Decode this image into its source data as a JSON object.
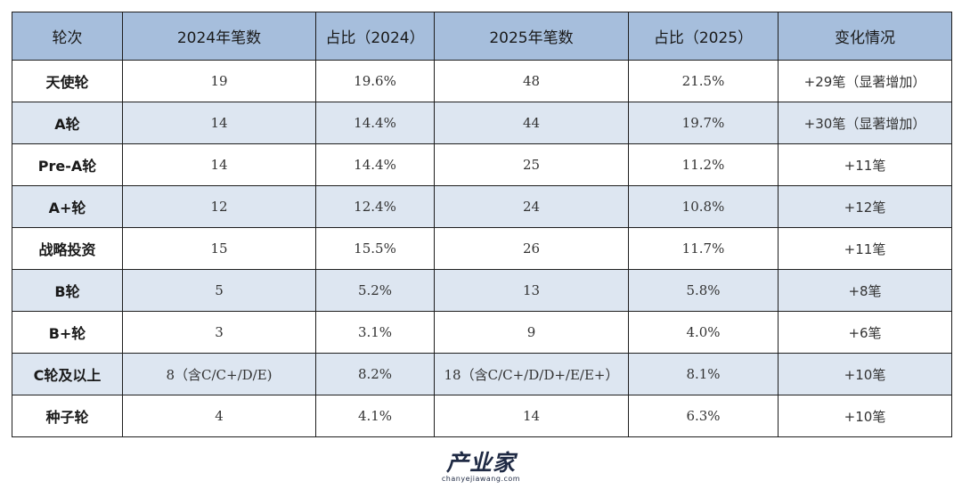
{
  "table": {
    "headers": [
      "轮次",
      "2024年笔数",
      "占比（2024）",
      "2025年笔数",
      "占比（2025）",
      "变化情况"
    ],
    "rows": [
      [
        "天使轮",
        "19",
        "19.6%",
        "48",
        "21.5%",
        "+29笔（显著增加）"
      ],
      [
        "A轮",
        "14",
        "14.4%",
        "44",
        "19.7%",
        "+30笔（显著增加）"
      ],
      [
        "Pre-A轮",
        "14",
        "14.4%",
        "25",
        "11.2%",
        "+11笔"
      ],
      [
        "A+轮",
        "12",
        "12.4%",
        "24",
        "10.8%",
        "+12笔"
      ],
      [
        "战略投资",
        "15",
        "15.5%",
        "26",
        "11.7%",
        "+11笔"
      ],
      [
        "B轮",
        "5",
        "5.2%",
        "13",
        "5.8%",
        "+8笔"
      ],
      [
        "B+轮",
        "3",
        "3.1%",
        "9",
        "4.0%",
        "+6笔"
      ],
      [
        "C轮及以上",
        "8（含C/C+/D/E)",
        "8.2%",
        "18（含C/C+/D/D+/E/E+）",
        "8.1%",
        "+10笔"
      ],
      [
        "种子轮",
        "4",
        "4.1%",
        "14",
        "6.3%",
        "+10笔"
      ]
    ]
  },
  "logo": {
    "name": "产业家",
    "url": "chanyejiawang.com"
  },
  "colors": {
    "header_bg": "#a6bedc",
    "stripe_bg": "#dde6f1",
    "border": "#1e1e1e",
    "logo": "#1f2a44"
  }
}
